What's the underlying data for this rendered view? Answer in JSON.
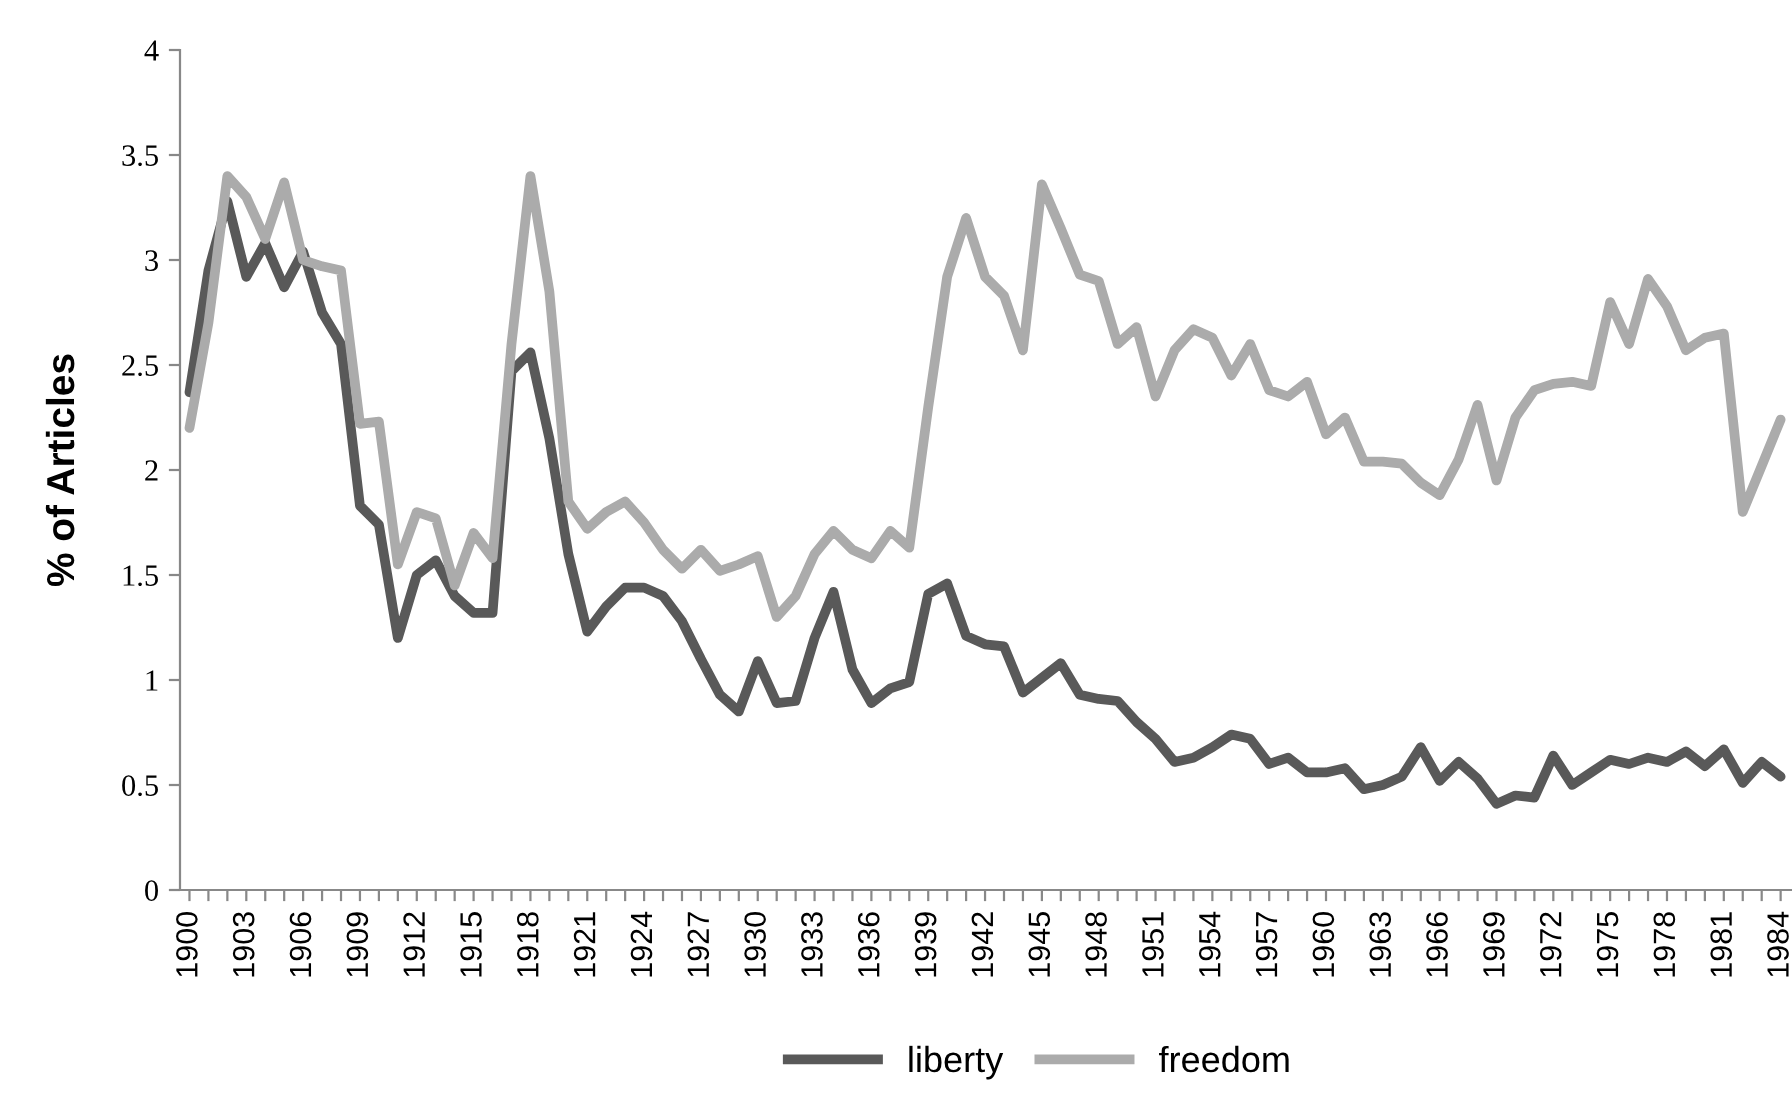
{
  "chart_data": {
    "type": "line",
    "ylabel": "% of Articles",
    "categories": [
      "1900",
      null,
      null,
      "1903",
      null,
      null,
      "1906",
      null,
      null,
      "1909",
      null,
      null,
      "1912",
      null,
      null,
      "1915",
      null,
      null,
      "1918",
      null,
      null,
      "1921",
      null,
      null,
      "1924",
      null,
      null,
      "1927",
      null,
      null,
      "1930",
      null,
      null,
      "1933",
      null,
      null,
      "1936",
      null,
      null,
      "1939",
      null,
      null,
      "1942",
      null,
      null,
      "1945",
      null,
      null,
      "1948",
      null,
      null,
      "1951",
      null,
      null,
      "1954",
      null,
      null,
      "1957",
      null,
      null,
      "1960",
      null,
      null,
      "1963",
      null,
      null,
      "1966",
      null,
      null,
      "1969",
      null,
      null,
      "1972",
      null,
      null,
      "1975",
      null,
      null,
      "1978",
      null,
      null,
      "1981",
      null,
      null,
      "1984"
    ],
    "series": [
      {
        "name": "liberty",
        "color": "#595959",
        "values": [
          2.37,
          2.95,
          3.28,
          2.92,
          3.08,
          2.87,
          3.04,
          2.75,
          2.6,
          1.83,
          1.74,
          1.2,
          1.5,
          1.57,
          1.4,
          1.32,
          1.32,
          2.47,
          2.56,
          2.15,
          1.6,
          1.23,
          1.35,
          1.44,
          1.44,
          1.4,
          1.28,
          1.1,
          0.93,
          0.85,
          1.09,
          0.89,
          0.9,
          1.2,
          1.42,
          1.05,
          0.89,
          0.96,
          0.99,
          1.41,
          1.46,
          1.21,
          1.17,
          1.16,
          0.94,
          1.01,
          1.08,
          0.93,
          0.91,
          0.9,
          0.8,
          0.72,
          0.61,
          0.63,
          0.68,
          0.74,
          0.72,
          0.6,
          0.63,
          0.56,
          0.56,
          0.58,
          0.48,
          0.5,
          0.54,
          0.68,
          0.52,
          0.61,
          0.53,
          0.41,
          0.45,
          0.44,
          0.64,
          0.5,
          0.56,
          0.62,
          0.6,
          0.63,
          0.61,
          0.66,
          0.59,
          0.67,
          0.51,
          0.61,
          0.54
        ]
      },
      {
        "name": "freedom",
        "color": "#ababab",
        "values": [
          2.2,
          2.7,
          3.4,
          3.3,
          3.1,
          3.37,
          3.0,
          2.97,
          2.95,
          2.22,
          2.23,
          1.55,
          1.8,
          1.77,
          1.45,
          1.7,
          1.58,
          2.6,
          3.4,
          2.85,
          1.85,
          1.72,
          1.8,
          1.85,
          1.75,
          1.62,
          1.53,
          1.62,
          1.52,
          1.55,
          1.59,
          1.3,
          1.4,
          1.6,
          1.71,
          1.62,
          1.58,
          1.71,
          1.63,
          2.3,
          2.92,
          3.2,
          2.92,
          2.83,
          2.57,
          3.36,
          3.15,
          2.93,
          2.9,
          2.6,
          2.68,
          2.35,
          2.57,
          2.67,
          2.63,
          2.45,
          2.6,
          2.38,
          2.35,
          2.42,
          2.17,
          2.25,
          2.04,
          2.04,
          2.03,
          1.94,
          1.88,
          2.05,
          2.31,
          1.95,
          2.25,
          2.38,
          2.41,
          2.42,
          2.4,
          2.8,
          2.6,
          2.91,
          2.78,
          2.57,
          2.63,
          2.65,
          1.8,
          2.02,
          2.24
        ]
      }
    ],
    "ylim": [
      0,
      4
    ],
    "yticks": [
      0,
      {
        "value": 0.5,
        "label": "0.5"
      },
      1,
      {
        "value": 1.5,
        "label": "1.5"
      },
      2,
      {
        "value": 2.5,
        "label": "2.5"
      },
      3,
      {
        "value": 3.5,
        "label": "3.5"
      },
      4
    ],
    "grid": false,
    "legend": "bottom",
    "marker": "none",
    "line_style": "solid"
  }
}
